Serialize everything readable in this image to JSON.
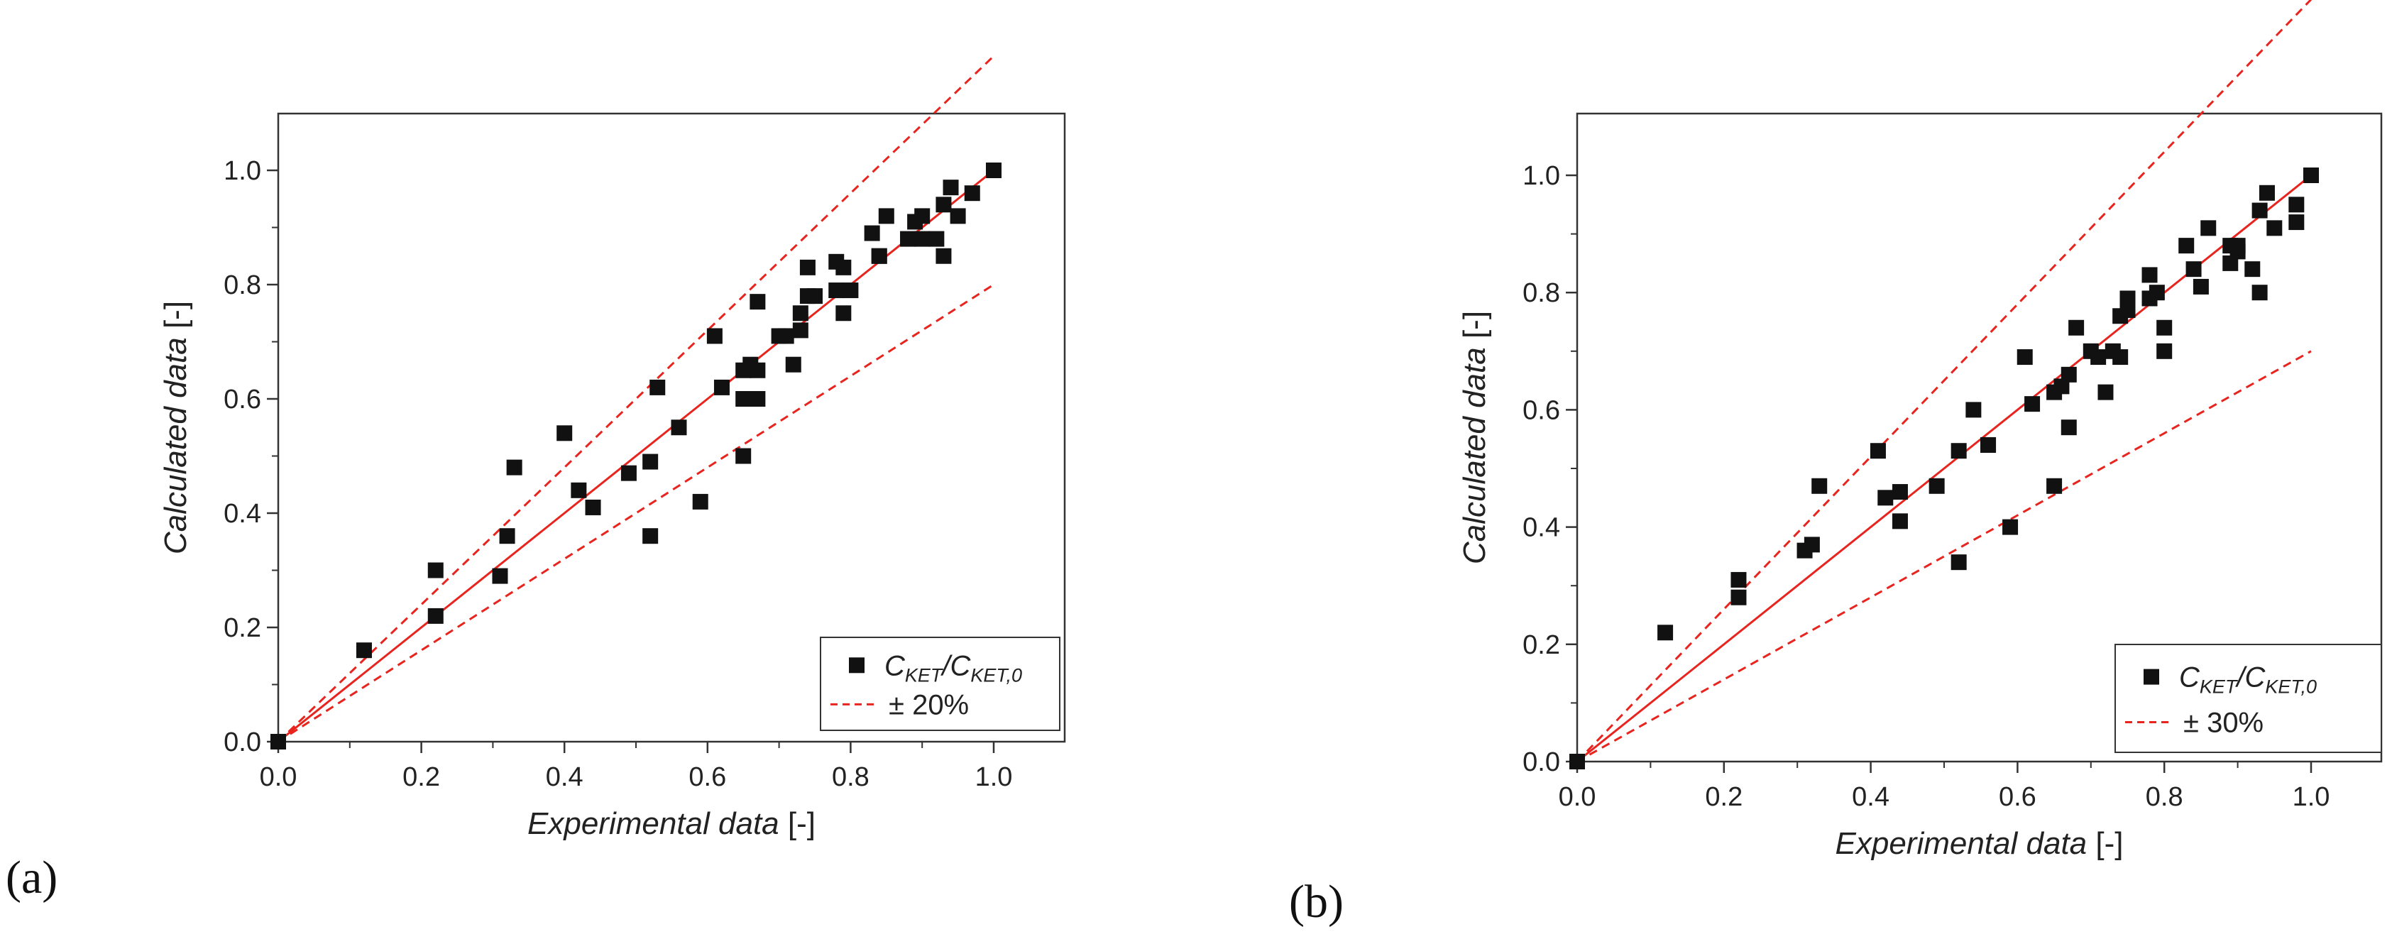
{
  "panels": [
    {
      "panel_label": "(a)",
      "legend": {
        "marker_series_label_main": "C",
        "marker_series_sub1": "KET",
        "marker_series_mid": "/C",
        "marker_series_sub2": "KET,0",
        "line_label": "± 20%"
      }
    },
    {
      "panel_label": "(b)",
      "legend": {
        "marker_series_label_main": "C",
        "marker_series_sub1": "KET",
        "marker_series_mid": "/C",
        "marker_series_sub2": "KET,0",
        "line_label": "± 30%"
      }
    }
  ],
  "colors": {
    "line": "#e8241f",
    "marker": "#111111",
    "axis": "#333333"
  },
  "chart_data": [
    {
      "type": "scatter",
      "title": "",
      "xlabel": "Experimental data [-]",
      "ylabel": "Calculated data [-]",
      "xlim": [
        0,
        1.1
      ],
      "ylim": [
        0,
        1.1
      ],
      "xticks": [
        "0.0",
        "0.2",
        "0.4",
        "0.6",
        "0.8",
        "1.0"
      ],
      "yticks": [
        "0.0",
        "0.2",
        "0.4",
        "0.6",
        "0.8",
        "1.0"
      ],
      "legend_position": "bottom-right",
      "band": 0.2,
      "series": [
        {
          "name": "C_KET/C_KET,0",
          "points": [
            [
              0,
              0
            ],
            [
              0.12,
              0.16
            ],
            [
              0.22,
              0.22
            ],
            [
              0.22,
              0.3
            ],
            [
              0.31,
              0.29
            ],
            [
              0.32,
              0.36
            ],
            [
              0.33,
              0.48
            ],
            [
              0.4,
              0.54
            ],
            [
              0.42,
              0.44
            ],
            [
              0.44,
              0.41
            ],
            [
              0.49,
              0.47
            ],
            [
              0.52,
              0.36
            ],
            [
              0.52,
              0.49
            ],
            [
              0.53,
              0.62
            ],
            [
              0.56,
              0.55
            ],
            [
              0.59,
              0.42
            ],
            [
              0.61,
              0.71
            ],
            [
              0.62,
              0.62
            ],
            [
              0.65,
              0.6
            ],
            [
              0.65,
              0.5
            ],
            [
              0.65,
              0.65
            ],
            [
              0.66,
              0.66
            ],
            [
              0.67,
              0.6
            ],
            [
              0.67,
              0.65
            ],
            [
              0.67,
              0.77
            ],
            [
              0.7,
              0.71
            ],
            [
              0.71,
              0.71
            ],
            [
              0.72,
              0.66
            ],
            [
              0.73,
              0.72
            ],
            [
              0.73,
              0.75
            ],
            [
              0.74,
              0.78
            ],
            [
              0.74,
              0.83
            ],
            [
              0.75,
              0.78
            ],
            [
              0.78,
              0.79
            ],
            [
              0.78,
              0.84
            ],
            [
              0.79,
              0.83
            ],
            [
              0.79,
              0.75
            ],
            [
              0.8,
              0.79
            ],
            [
              0.83,
              0.89
            ],
            [
              0.84,
              0.85
            ],
            [
              0.84,
              0.85
            ],
            [
              0.85,
              0.92
            ],
            [
              0.88,
              0.88
            ],
            [
              0.89,
              0.91
            ],
            [
              0.9,
              0.92
            ],
            [
              0.9,
              0.88
            ],
            [
              0.92,
              0.88
            ],
            [
              0.93,
              0.85
            ],
            [
              0.93,
              0.94
            ],
            [
              0.94,
              0.97
            ],
            [
              0.95,
              0.92
            ],
            [
              0.97,
              0.96
            ],
            [
              1.0,
              1.0
            ]
          ]
        },
        {
          "name": "± 20%",
          "kind": "dashed-lines",
          "slopes": [
            1.2,
            0.8
          ]
        },
        {
          "name": "y = x",
          "kind": "line",
          "slopes": [
            1.0
          ]
        }
      ]
    },
    {
      "type": "scatter",
      "title": "",
      "xlabel": "Experimental data [-]",
      "ylabel": "Calculated data [-]",
      "xlim": [
        0,
        1.1
      ],
      "ylim": [
        0,
        1.1
      ],
      "xticks": [
        "0.0",
        "0.2",
        "0.4",
        "0.6",
        "0.8",
        "1.0"
      ],
      "yticks": [
        "0.0",
        "0.2",
        "0.4",
        "0.6",
        "0.8",
        "1.0"
      ],
      "legend_position": "bottom-right",
      "band": 0.3,
      "series": [
        {
          "name": "C_KET/C_KET,0",
          "points": [
            [
              0,
              0
            ],
            [
              0.12,
              0.22
            ],
            [
              0.22,
              0.28
            ],
            [
              0.22,
              0.31
            ],
            [
              0.31,
              0.36
            ],
            [
              0.32,
              0.37
            ],
            [
              0.33,
              0.47
            ],
            [
              0.41,
              0.53
            ],
            [
              0.42,
              0.45
            ],
            [
              0.44,
              0.46
            ],
            [
              0.44,
              0.41
            ],
            [
              0.49,
              0.47
            ],
            [
              0.52,
              0.34
            ],
            [
              0.52,
              0.53
            ],
            [
              0.54,
              0.6
            ],
            [
              0.56,
              0.54
            ],
            [
              0.56,
              0.54
            ],
            [
              0.59,
              0.4
            ],
            [
              0.61,
              0.69
            ],
            [
              0.62,
              0.61
            ],
            [
              0.65,
              0.63
            ],
            [
              0.65,
              0.47
            ],
            [
              0.66,
              0.64
            ],
            [
              0.67,
              0.57
            ],
            [
              0.67,
              0.66
            ],
            [
              0.68,
              0.74
            ],
            [
              0.7,
              0.7
            ],
            [
              0.71,
              0.69
            ],
            [
              0.72,
              0.63
            ],
            [
              0.73,
              0.7
            ],
            [
              0.74,
              0.69
            ],
            [
              0.74,
              0.76
            ],
            [
              0.75,
              0.79
            ],
            [
              0.75,
              0.77
            ],
            [
              0.78,
              0.79
            ],
            [
              0.78,
              0.83
            ],
            [
              0.79,
              0.8
            ],
            [
              0.8,
              0.74
            ],
            [
              0.8,
              0.7
            ],
            [
              0.83,
              0.88
            ],
            [
              0.84,
              0.84
            ],
            [
              0.85,
              0.81
            ],
            [
              0.86,
              0.91
            ],
            [
              0.89,
              0.88
            ],
            [
              0.89,
              0.85
            ],
            [
              0.9,
              0.87
            ],
            [
              0.9,
              0.88
            ],
            [
              0.92,
              0.84
            ],
            [
              0.93,
              0.8
            ],
            [
              0.93,
              0.94
            ],
            [
              0.94,
              0.97
            ],
            [
              0.95,
              0.91
            ],
            [
              0.98,
              0.92
            ],
            [
              0.98,
              0.95
            ],
            [
              1.0,
              1.0
            ]
          ]
        },
        {
          "name": "± 30%",
          "kind": "dashed-lines",
          "slopes": [
            1.3,
            0.7
          ]
        },
        {
          "name": "y = x",
          "kind": "line",
          "slopes": [
            1.0
          ]
        }
      ]
    }
  ]
}
